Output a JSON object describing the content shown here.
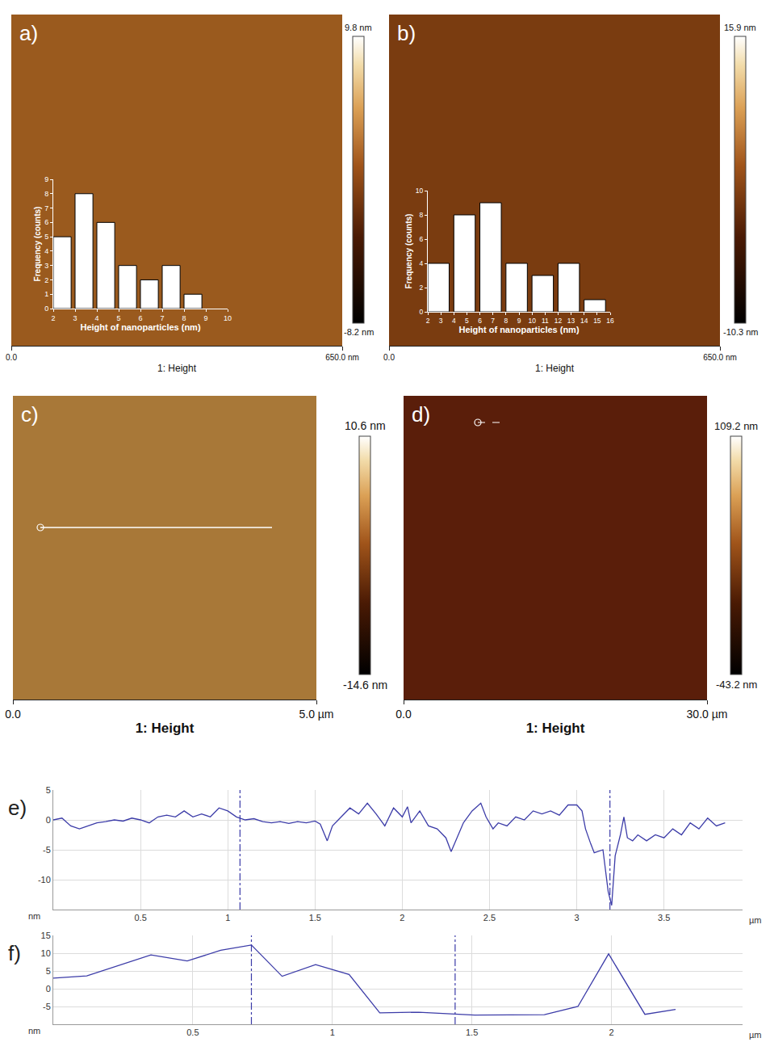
{
  "chart_data": [
    {
      "type": "image",
      "title": "a)",
      "color": "#9a5a1e",
      "x_label": "1: Height",
      "xlim": [
        0,
        650
      ],
      "xticks": [
        {
          "value": 0,
          "label": "0.0"
        },
        {
          "value": 650,
          "label": "650.0 nm"
        }
      ],
      "colorbar": {
        "range": [
          -8.2,
          9.8
        ],
        "ticks": [
          {
            "value": 9.8,
            "label": "9.8 nm"
          },
          {
            "value": -8.2,
            "label": "-8.2 nm"
          }
        ]
      },
      "inset": {
        "type": "histogram",
        "color": "#ffffff",
        "x_label": "Height of nanoparticles (nm)",
        "y_label": "Frequency (counts)",
        "bins": [
          2,
          3,
          4,
          5,
          6,
          7,
          8,
          9
        ],
        "values": [
          5,
          8,
          6,
          3,
          2,
          3,
          1
        ],
        "xlim": [
          2,
          10
        ],
        "xticks": [
          2,
          3,
          4,
          5,
          6,
          7,
          8,
          9,
          10
        ],
        "ylim": [
          0,
          9
        ],
        "yticks": [
          0,
          1,
          2,
          3,
          4,
          5,
          6,
          7,
          8,
          9
        ]
      }
    },
    {
      "type": "image",
      "title": "b)",
      "color": "#7a3c10",
      "x_label": "1: Height",
      "xlim": [
        0,
        650
      ],
      "xticks": [
        {
          "value": 0,
          "label": "0.0"
        },
        {
          "value": 650,
          "label": "650.0 nm"
        }
      ],
      "colorbar": {
        "range": [
          -10.3,
          15.9
        ],
        "ticks": [
          {
            "value": 15.9,
            "label": "15.9 nm"
          },
          {
            "value": -10.3,
            "label": "-10.3 nm"
          }
        ]
      },
      "inset": {
        "type": "histogram",
        "color": "#ffffff",
        "x_label": "Height of nanoparticles (nm)",
        "y_label": "Frequency (counts)",
        "bins": [
          2,
          4,
          6,
          8,
          10,
          12,
          14,
          16
        ],
        "values": [
          4,
          8,
          9,
          4,
          3,
          4,
          1
        ],
        "xlim": [
          2,
          16
        ],
        "xticks": [
          2,
          3,
          4,
          5,
          6,
          7,
          8,
          9,
          10,
          11,
          12,
          13,
          14,
          15,
          16
        ],
        "ylim": [
          0,
          10
        ],
        "yticks": [
          0,
          2,
          4,
          6,
          8,
          10
        ]
      }
    },
    {
      "type": "image",
      "title": "c)",
      "color": "#a87838",
      "x_label": "1: Height",
      "xlim": [
        0,
        5
      ],
      "xticks": [
        {
          "value": 0,
          "label": "0.0"
        },
        {
          "value": 5,
          "label": "5.0 µm"
        }
      ],
      "colorbar": {
        "range": [
          -14.6,
          10.6
        ],
        "ticks": [
          {
            "value": 10.6,
            "label": "10.6 nm"
          },
          {
            "value": -14.6,
            "label": "-14.6 nm"
          }
        ]
      }
    },
    {
      "type": "image",
      "title": "d)",
      "color": "#5a1e0a",
      "x_label": "1: Height",
      "xlim": [
        0,
        30
      ],
      "xticks": [
        {
          "value": 0,
          "label": "0.0"
        },
        {
          "value": 30,
          "label": "30.0 µm"
        }
      ],
      "colorbar": {
        "range": [
          -43.2,
          109.2
        ],
        "ticks": [
          {
            "value": 109.2,
            "label": "109.2 nm"
          },
          {
            "value": -43.2,
            "label": "-43.2 nm"
          }
        ]
      }
    },
    {
      "type": "line",
      "title": "e)",
      "color": "#3c3ca8",
      "grid": true,
      "x_label": "µm",
      "y_label": "nm",
      "xlim": [
        0,
        3.95
      ],
      "xticks": [
        0.5,
        1,
        1.5,
        2,
        2.5,
        3,
        3.5
      ],
      "ylim": [
        -15,
        5
      ],
      "yticks": [
        -10,
        -5,
        0,
        5
      ],
      "cursors": [
        1.07,
        3.19
      ],
      "x": [
        0,
        0.05,
        0.1,
        0.15,
        0.2,
        0.25,
        0.3,
        0.35,
        0.4,
        0.45,
        0.5,
        0.55,
        0.6,
        0.65,
        0.7,
        0.75,
        0.8,
        0.85,
        0.9,
        0.95,
        1.0,
        1.05,
        1.1,
        1.15,
        1.2,
        1.25,
        1.3,
        1.35,
        1.4,
        1.45,
        1.5,
        1.53,
        1.57,
        1.6,
        1.65,
        1.7,
        1.75,
        1.8,
        1.85,
        1.9,
        1.95,
        2.0,
        2.03,
        2.05,
        2.1,
        2.15,
        2.2,
        2.25,
        2.28,
        2.32,
        2.35,
        2.4,
        2.45,
        2.48,
        2.52,
        2.55,
        2.6,
        2.65,
        2.7,
        2.75,
        2.8,
        2.85,
        2.9,
        2.95,
        3.0,
        3.03,
        3.05,
        3.08,
        3.1,
        3.15,
        3.18,
        3.2,
        3.22,
        3.25,
        3.27,
        3.29,
        3.32,
        3.35,
        3.4,
        3.45,
        3.5,
        3.55,
        3.6,
        3.65,
        3.7,
        3.75,
        3.8,
        3.85
      ],
      "values": [
        0,
        0.3,
        -1,
        -1.5,
        -1,
        -0.5,
        -0.3,
        0,
        -0.2,
        0.3,
        0,
        -0.5,
        0.5,
        0.8,
        0.5,
        1.5,
        0.5,
        1,
        0.5,
        2,
        1.5,
        0.5,
        0,
        0.2,
        -0.3,
        -0.5,
        -0.3,
        -0.6,
        -0.3,
        -0.5,
        -0.2,
        -0.7,
        -3.5,
        -1,
        0.5,
        2,
        1,
        2.8,
        1,
        -1,
        2,
        0.5,
        2.2,
        -0.5,
        1.5,
        -1,
        -1.5,
        -3,
        -5.3,
        -2.5,
        -0.5,
        1.5,
        2.8,
        0.5,
        -1.5,
        -0.5,
        -1,
        0.5,
        0,
        1.5,
        1,
        1.5,
        0.8,
        2.5,
        2.5,
        1.5,
        -1.5,
        -4,
        -5.5,
        -5,
        -12,
        -14.3,
        -6,
        -2.5,
        0.5,
        -3,
        -3.5,
        -2.5,
        -3.5,
        -2.5,
        -3,
        -1.5,
        -2.5,
        -0.5,
        -1.5,
        0.3,
        -1,
        -0.5
      ]
    },
    {
      "type": "line",
      "title": "f)",
      "color": "#3c3ca8",
      "grid": true,
      "x_label": "µm",
      "y_label": "nm",
      "xlim": [
        0,
        2.47
      ],
      "xticks": [
        0.5,
        1,
        1.5,
        2
      ],
      "ylim": [
        -10,
        15
      ],
      "yticks": [
        -5,
        0,
        5,
        10,
        15
      ],
      "cursors": [
        0.71,
        1.44
      ],
      "x": [
        0,
        0.12,
        0.35,
        0.48,
        0.6,
        0.71,
        0.82,
        0.94,
        1.06,
        1.17,
        1.31,
        1.51,
        1.76,
        1.88,
        1.99,
        2.12,
        2.23
      ],
      "values": [
        3,
        3.6,
        9.5,
        7.8,
        10.8,
        12.3,
        3.5,
        6.8,
        4,
        -6.8,
        -6.6,
        -7.4,
        -7.3,
        -5,
        9.8,
        -7.2,
        -5.8
      ]
    }
  ]
}
